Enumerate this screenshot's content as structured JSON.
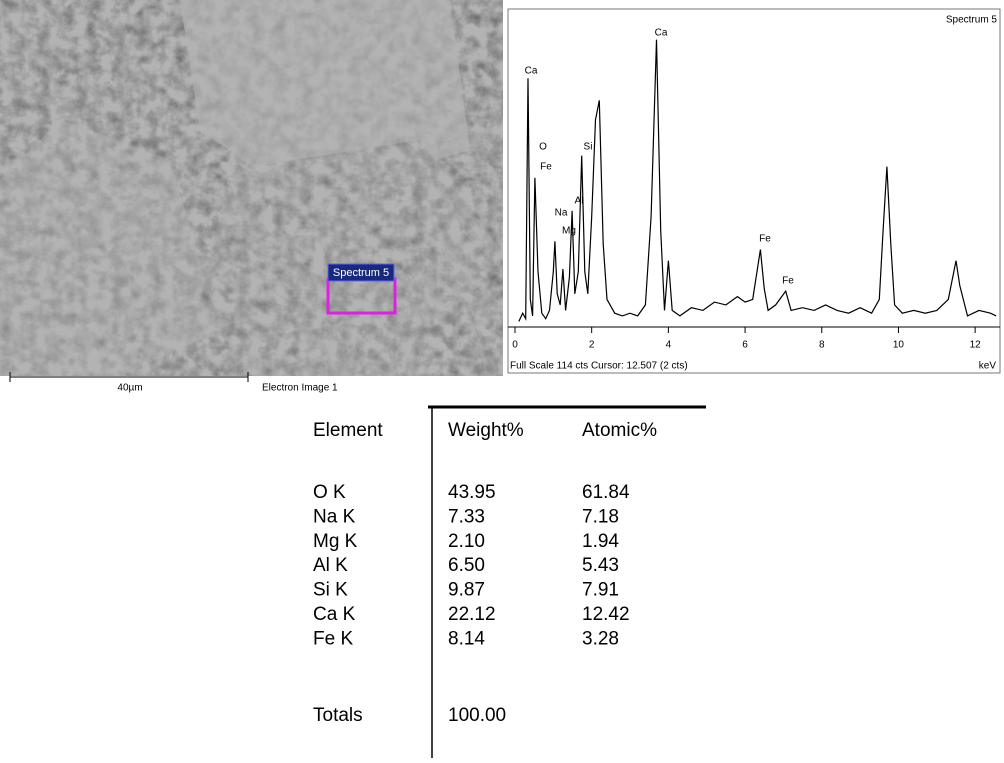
{
  "image": {
    "region_label": "Spectrum 5",
    "scale_label": "40µm",
    "caption": "Electron Image 1"
  },
  "chart_data": {
    "type": "line",
    "title": "Spectrum 5",
    "footer": "Full Scale 114 cts Cursor: 12.507  (2 cts)",
    "x_unit": "keV",
    "color": "#000000",
    "peak_labels": [
      "Ca",
      "Ca",
      "O",
      "Fe",
      "Si",
      "Na",
      "Al",
      "Mg",
      "Fe",
      "Fe"
    ],
    "xlim": [
      -0.13,
      12.57
    ],
    "xticks": [
      0,
      2,
      4,
      6,
      8,
      10,
      12
    ],
    "ylim": [
      0,
      114
    ],
    "x": [
      0.1,
      0.2,
      0.28,
      0.34,
      0.4,
      0.46,
      0.52,
      0.6,
      0.7,
      0.8,
      0.9,
      1.0,
      1.04,
      1.1,
      1.18,
      1.25,
      1.32,
      1.42,
      1.49,
      1.56,
      1.65,
      1.74,
      1.82,
      1.9,
      2.0,
      2.1,
      2.2,
      2.3,
      2.4,
      2.6,
      2.8,
      3.0,
      3.2,
      3.4,
      3.55,
      3.69,
      3.8,
      3.9,
      4.0,
      4.1,
      4.3,
      4.6,
      4.9,
      5.2,
      5.5,
      5.8,
      6.0,
      6.2,
      6.4,
      6.5,
      6.6,
      6.8,
      7.06,
      7.2,
      7.5,
      7.8,
      8.1,
      8.4,
      8.7,
      9.0,
      9.3,
      9.5,
      9.6,
      9.7,
      9.8,
      9.9,
      10.1,
      10.4,
      10.7,
      11.0,
      11.3,
      11.5,
      11.6,
      11.8,
      12.1,
      12.4,
      12.55
    ],
    "values": [
      2,
      5,
      3,
      90,
      10,
      4,
      54,
      20,
      5,
      3,
      6,
      20,
      31,
      12,
      8,
      21,
      6,
      18,
      42,
      12,
      20,
      62,
      20,
      12,
      40,
      75,
      82,
      30,
      10,
      5,
      4,
      5,
      4,
      8,
      40,
      104,
      35,
      6,
      24,
      6,
      4,
      7,
      6,
      9,
      8,
      11,
      9,
      10,
      28,
      14,
      6,
      8,
      13,
      6,
      7,
      6,
      8,
      6,
      5,
      7,
      5,
      10,
      35,
      58,
      30,
      8,
      5,
      6,
      5,
      6,
      10,
      24,
      15,
      4,
      6,
      5,
      4
    ]
  },
  "table": {
    "header": [
      "Element",
      "Weight%",
      "Atomic%"
    ],
    "rows": [
      [
        "O K",
        "43.95",
        "61.84"
      ],
      [
        "Na K",
        "7.33",
        "7.18"
      ],
      [
        "Mg K",
        "2.10",
        "1.94"
      ],
      [
        "Al K",
        "6.50",
        "5.43"
      ],
      [
        "Si K",
        "9.87",
        "7.91"
      ],
      [
        "Ca K",
        "22.12",
        "12.42"
      ],
      [
        "Fe K",
        "8.14",
        "3.28"
      ]
    ],
    "totals": [
      "Totals",
      "100.00"
    ]
  }
}
